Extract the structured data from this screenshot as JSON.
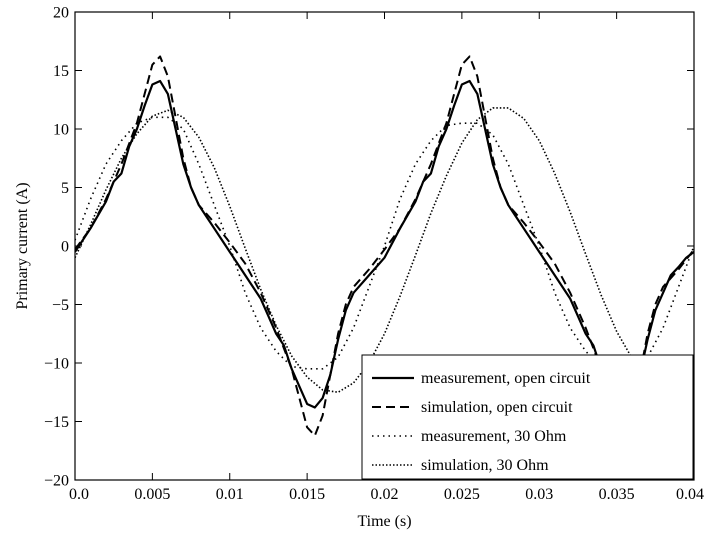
{
  "chart_data": {
    "type": "line",
    "title": "",
    "xlabel": "Time (s)",
    "ylabel": "Primary current (A)",
    "xlim": [
      0,
      0.04
    ],
    "ylim": [
      -20,
      20
    ],
    "xticks": [
      0.0,
      0.005,
      0.01,
      0.015,
      0.02,
      0.025,
      0.03,
      0.035,
      0.04
    ],
    "xtick_labels": [
      "0.0",
      "0.005",
      "0.01",
      "0.015",
      "0.02",
      "0.025",
      "0.03",
      "0.035",
      "0.04"
    ],
    "yticks": [
      -20,
      -15,
      -10,
      -5,
      0,
      5,
      10,
      15,
      20
    ],
    "ytick_labels": [
      "−20",
      "−15",
      "−10",
      "−5",
      "0",
      "5",
      "10",
      "15",
      "20"
    ],
    "grid": false,
    "legend_position": "bottom-right",
    "series": [
      {
        "name": "measurement, open circuit",
        "style": "solid",
        "x": [
          0,
          0.001,
          0.002,
          0.0025,
          0.003,
          0.0035,
          0.004,
          0.0045,
          0.005,
          0.0055,
          0.006,
          0.0065,
          0.007,
          0.0075,
          0.008,
          0.0085,
          0.009,
          0.0095,
          0.01,
          0.011,
          0.012,
          0.0125,
          0.013,
          0.0135,
          0.014,
          0.0145,
          0.015,
          0.0155,
          0.016,
          0.0165,
          0.017,
          0.0175,
          0.018,
          0.019,
          0.02,
          0.021,
          0.022,
          0.0225,
          0.023,
          0.0235,
          0.024,
          0.0245,
          0.025,
          0.0255,
          0.026,
          0.0265,
          0.027,
          0.0275,
          0.028,
          0.0285,
          0.029,
          0.0295,
          0.03,
          0.031,
          0.032,
          0.0325,
          0.033,
          0.0335,
          0.034,
          0.0345,
          0.035,
          0.0355,
          0.036,
          0.0365,
          0.037,
          0.0375,
          0.038,
          0.0385,
          0.039,
          0.0395,
          0.04
        ],
        "values": [
          -0.5,
          1.5,
          3.8,
          5.5,
          6.2,
          8.5,
          10.0,
          12.0,
          13.8,
          14.1,
          13.0,
          10.0,
          7.0,
          5.0,
          3.5,
          2.5,
          1.5,
          0.5,
          -0.5,
          -2.5,
          -4.5,
          -6.0,
          -7.5,
          -8.5,
          -10.5,
          -12.0,
          -13.5,
          -13.8,
          -13.0,
          -11.0,
          -8.0,
          -5.5,
          -4.0,
          -2.5,
          -1.0,
          1.5,
          3.8,
          5.5,
          6.2,
          8.5,
          10.0,
          12.0,
          13.8,
          14.1,
          13.0,
          10.0,
          7.0,
          5.0,
          3.5,
          2.5,
          1.5,
          0.5,
          -0.5,
          -2.5,
          -4.5,
          -6.0,
          -7.5,
          -8.5,
          -10.5,
          -12.0,
          -13.5,
          -13.8,
          -13.0,
          -11.0,
          -8.0,
          -5.5,
          -4.0,
          -2.5,
          -1.8,
          -1.0,
          -0.5
        ]
      },
      {
        "name": "simulation, open circuit",
        "style": "dashed",
        "x": [
          0,
          0.001,
          0.002,
          0.003,
          0.004,
          0.0045,
          0.005,
          0.0055,
          0.006,
          0.0065,
          0.007,
          0.0075,
          0.008,
          0.009,
          0.01,
          0.011,
          0.012,
          0.013,
          0.014,
          0.0145,
          0.015,
          0.0155,
          0.016,
          0.0165,
          0.017,
          0.0175,
          0.018,
          0.019,
          0.02,
          0.021,
          0.022,
          0.023,
          0.024,
          0.0245,
          0.025,
          0.0255,
          0.026,
          0.0265,
          0.027,
          0.0275,
          0.028,
          0.029,
          0.03,
          0.031,
          0.032,
          0.033,
          0.034,
          0.0345,
          0.035,
          0.0355,
          0.036,
          0.0365,
          0.037,
          0.0375,
          0.038,
          0.039,
          0.04
        ],
        "values": [
          -0.3,
          1.5,
          4.0,
          7.0,
          10.5,
          13.0,
          15.5,
          16.2,
          14.5,
          11.0,
          7.5,
          5.0,
          3.5,
          2.0,
          0.3,
          -1.5,
          -4.0,
          -7.0,
          -10.5,
          -13.0,
          -15.5,
          -16.2,
          -14.5,
          -11.0,
          -7.5,
          -5.0,
          -3.5,
          -2.0,
          -0.3,
          1.5,
          4.0,
          7.0,
          10.5,
          13.0,
          15.5,
          16.2,
          14.5,
          11.0,
          7.5,
          5.0,
          3.5,
          2.0,
          0.3,
          -1.5,
          -4.0,
          -7.0,
          -10.5,
          -13.0,
          -15.5,
          -16.2,
          -14.5,
          -11.0,
          -7.5,
          -5.0,
          -3.5,
          -2.0,
          -0.3
        ]
      },
      {
        "name": "measurement, 30 Ohm",
        "style": "dotted",
        "x": [
          0,
          0.001,
          0.002,
          0.003,
          0.004,
          0.005,
          0.006,
          0.007,
          0.008,
          0.009,
          0.01,
          0.011,
          0.012,
          0.013,
          0.014,
          0.015,
          0.016,
          0.017,
          0.018,
          0.019,
          0.02,
          0.021,
          0.022,
          0.023,
          0.024,
          0.025,
          0.026,
          0.027,
          0.028,
          0.029,
          0.03,
          0.031,
          0.032,
          0.033,
          0.034,
          0.035,
          0.036,
          0.037,
          0.038,
          0.039,
          0.04
        ],
        "values": [
          0.5,
          4.0,
          7.0,
          9.0,
          10.5,
          11.0,
          11.0,
          10.0,
          7.0,
          3.5,
          0.0,
          -4.0,
          -7.0,
          -9.0,
          -10.3,
          -10.5,
          -10.5,
          -9.5,
          -7.0,
          -3.5,
          0.0,
          4.0,
          7.0,
          9.0,
          10.3,
          10.5,
          10.5,
          9.5,
          7.0,
          3.5,
          0.0,
          -4.0,
          -7.0,
          -9.0,
          -10.3,
          -10.5,
          -10.5,
          -9.5,
          -7.0,
          -3.5,
          0.0
        ]
      },
      {
        "name": "simulation, 30 Ohm",
        "style": "dense-dotted",
        "x": [
          0,
          0.001,
          0.002,
          0.003,
          0.004,
          0.005,
          0.006,
          0.007,
          0.008,
          0.009,
          0.01,
          0.011,
          0.012,
          0.013,
          0.014,
          0.015,
          0.016,
          0.017,
          0.018,
          0.019,
          0.02,
          0.021,
          0.022,
          0.023,
          0.024,
          0.025,
          0.026,
          0.027,
          0.028,
          0.029,
          0.03,
          0.031,
          0.032,
          0.033,
          0.034,
          0.035,
          0.036,
          0.037,
          0.038,
          0.039,
          0.04
        ],
        "values": [
          -1.0,
          1.8,
          4.8,
          7.5,
          9.6,
          11.1,
          11.6,
          11.0,
          9.3,
          6.7,
          3.4,
          -0.2,
          -3.7,
          -6.8,
          -9.4,
          -11.2,
          -12.3,
          -12.5,
          -11.7,
          -10.0,
          -7.5,
          -4.3,
          -0.8,
          2.8,
          6.0,
          8.8,
          10.8,
          11.8,
          11.8,
          10.9,
          9.0,
          6.2,
          2.9,
          -0.7,
          -4.2,
          -7.3,
          -9.6,
          -11.1,
          -11.6,
          -11.0,
          -9.3
        ]
      }
    ]
  }
}
